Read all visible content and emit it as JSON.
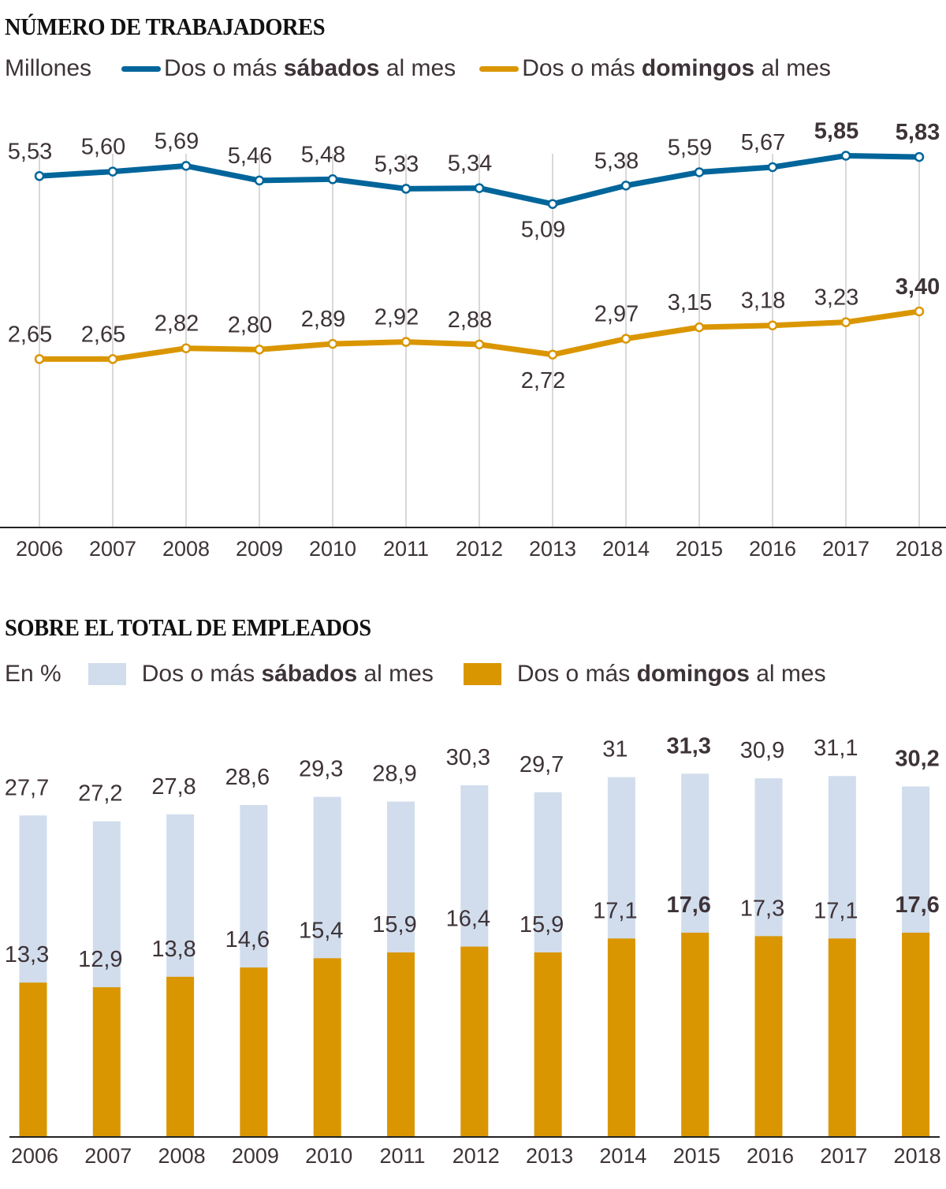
{
  "chart_data": [
    {
      "type": "line",
      "title": "NÚMERO DE TRABAJADORES",
      "ylabel": "Millones",
      "xlabel": "",
      "x": [
        "2006",
        "2007",
        "2008",
        "2009",
        "2010",
        "2011",
        "2012",
        "2013",
        "2014",
        "2015",
        "2016",
        "2017",
        "2018"
      ],
      "ylim": [
        0,
        6
      ],
      "grid": "vertical",
      "legend_placement": "top-left",
      "series": [
        {
          "name": "Dos o más sábados al mes",
          "name_parts": [
            "Dos o más ",
            "sábados",
            " al mes"
          ],
          "color": "#00659a",
          "values": [
            5.53,
            5.6,
            5.69,
            5.46,
            5.48,
            5.33,
            5.34,
            5.09,
            5.38,
            5.59,
            5.67,
            5.85,
            5.83
          ],
          "labels": [
            "5,53",
            "5,60",
            "5,69",
            "5,46",
            "5,48",
            "5,33",
            "5,34",
            "5,09",
            "5,38",
            "5,59",
            "5,67",
            "5,85",
            "5,83"
          ],
          "label_below": [
            false,
            false,
            false,
            false,
            false,
            false,
            false,
            true,
            false,
            false,
            false,
            false,
            false
          ],
          "label_bold": [
            false,
            false,
            false,
            false,
            false,
            false,
            false,
            false,
            false,
            false,
            false,
            true,
            true
          ]
        },
        {
          "name": "Dos o más domingos al mes",
          "name_parts": [
            "Dos o más ",
            "domingos",
            " al mes"
          ],
          "color": "#da9600",
          "values": [
            2.65,
            2.65,
            2.82,
            2.8,
            2.89,
            2.92,
            2.88,
            2.72,
            2.97,
            3.15,
            3.18,
            3.23,
            3.4
          ],
          "labels": [
            "2,65",
            "2,65",
            "2,82",
            "2,80",
            "2,89",
            "2,92",
            "2,88",
            "2,72",
            "2,97",
            "3,15",
            "3,18",
            "3,23",
            "3,40"
          ],
          "label_below": [
            false,
            false,
            false,
            false,
            false,
            false,
            false,
            true,
            false,
            false,
            false,
            false,
            false
          ],
          "label_bold": [
            false,
            false,
            false,
            false,
            false,
            false,
            false,
            false,
            false,
            false,
            false,
            false,
            true
          ]
        }
      ]
    },
    {
      "type": "bar",
      "title": "SOBRE EL TOTAL DE EMPLEADOS",
      "ylabel": "En %",
      "xlabel": "",
      "categories": [
        "2006",
        "2007",
        "2008",
        "2009",
        "2010",
        "2011",
        "2012",
        "2013",
        "2014",
        "2015",
        "2016",
        "2017",
        "2018"
      ],
      "ylim": [
        0,
        32
      ],
      "grid": "none",
      "legend_placement": "top-left",
      "series": [
        {
          "name": "Dos o más sábados al mes",
          "name_parts": [
            "Dos o más ",
            "sábados",
            " al mes"
          ],
          "color": "#d1ddec",
          "values": [
            27.7,
            27.2,
            27.8,
            28.6,
            29.3,
            28.9,
            30.3,
            29.7,
            31,
            31.3,
            30.9,
            31.1,
            30.2
          ],
          "labels": [
            "27,7",
            "27,2",
            "27,8",
            "28,6",
            "29,3",
            "28,9",
            "30,3",
            "29,7",
            "31",
            "31,3",
            "30,9",
            "31,1",
            "30,2"
          ],
          "label_bold": [
            false,
            false,
            false,
            false,
            false,
            false,
            false,
            false,
            false,
            true,
            false,
            false,
            true
          ]
        },
        {
          "name": "Dos o más domingos al mes",
          "name_parts": [
            "Dos o más ",
            "domingos",
            " al mes"
          ],
          "color": "#da9600",
          "values": [
            13.3,
            12.9,
            13.8,
            14.6,
            15.4,
            15.9,
            16.4,
            15.9,
            17.1,
            17.6,
            17.3,
            17.1,
            17.6
          ],
          "labels": [
            "13,3",
            "12,9",
            "13,8",
            "14,6",
            "15,4",
            "15,9",
            "16,4",
            "15,9",
            "17,1",
            "17,6",
            "17,3",
            "17,1",
            "17,6"
          ],
          "label_bold": [
            false,
            false,
            false,
            false,
            false,
            false,
            false,
            false,
            false,
            true,
            false,
            false,
            true
          ]
        }
      ]
    }
  ]
}
